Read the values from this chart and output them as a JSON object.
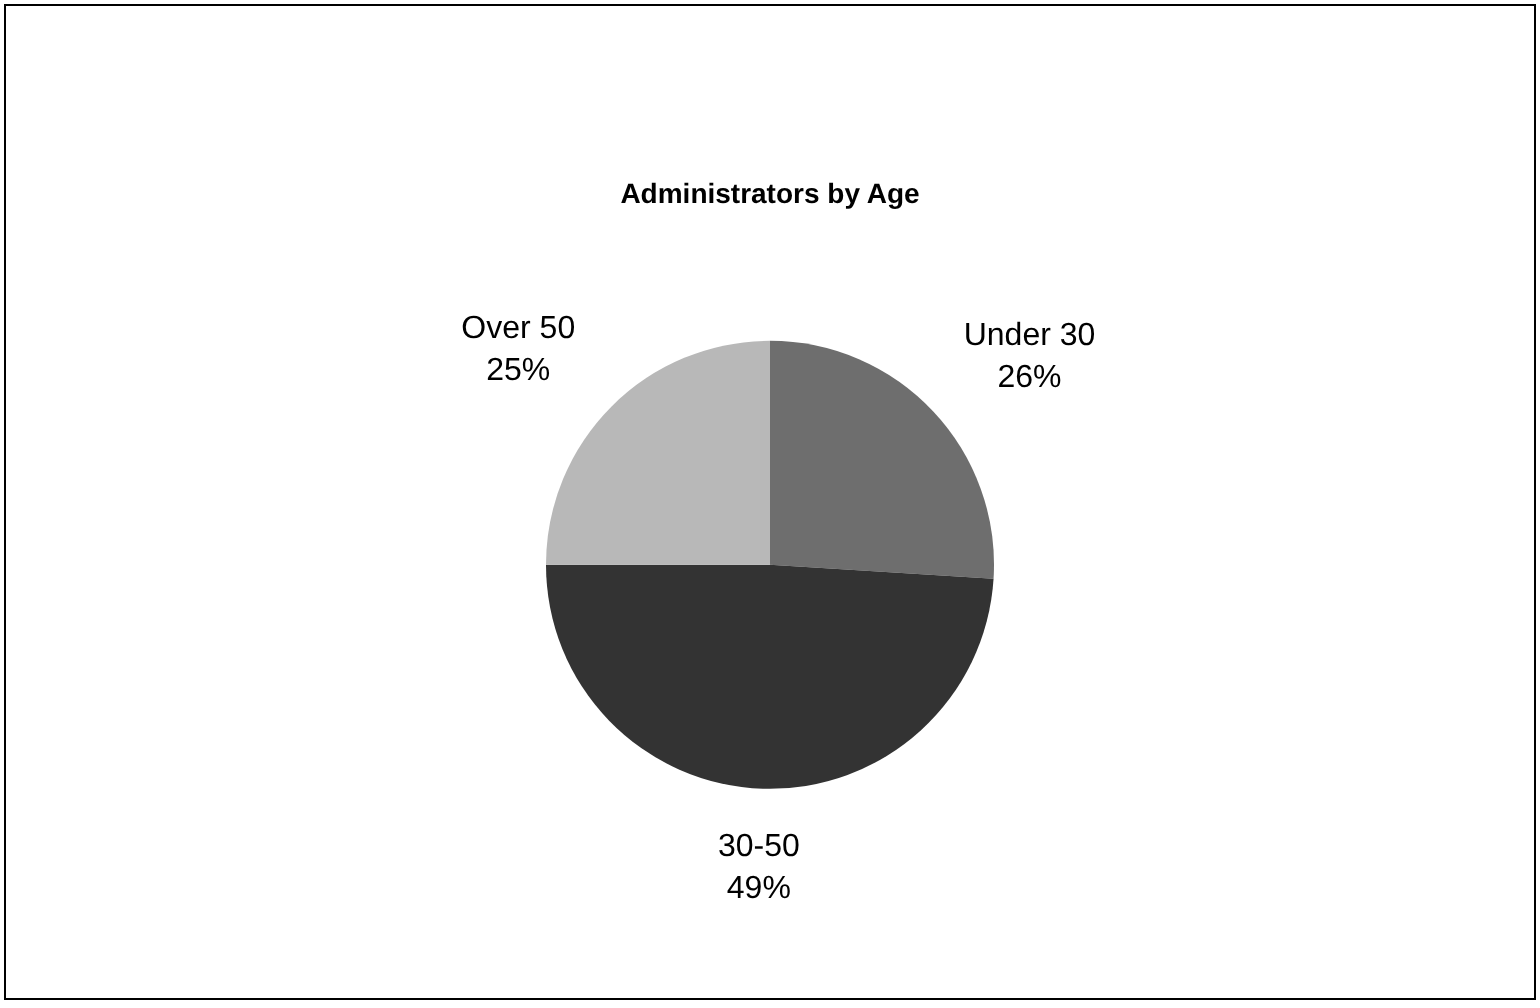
{
  "chart_data": {
    "type": "pie",
    "title": "Administrators by Age",
    "categories": [
      "Under 30",
      "30-50",
      "Over 50"
    ],
    "values": [
      26,
      49,
      25
    ],
    "value_labels": [
      "26%",
      "49%",
      "25%"
    ],
    "colors": [
      "#6e6e6e",
      "#333333",
      "#b8b8b8"
    ]
  }
}
